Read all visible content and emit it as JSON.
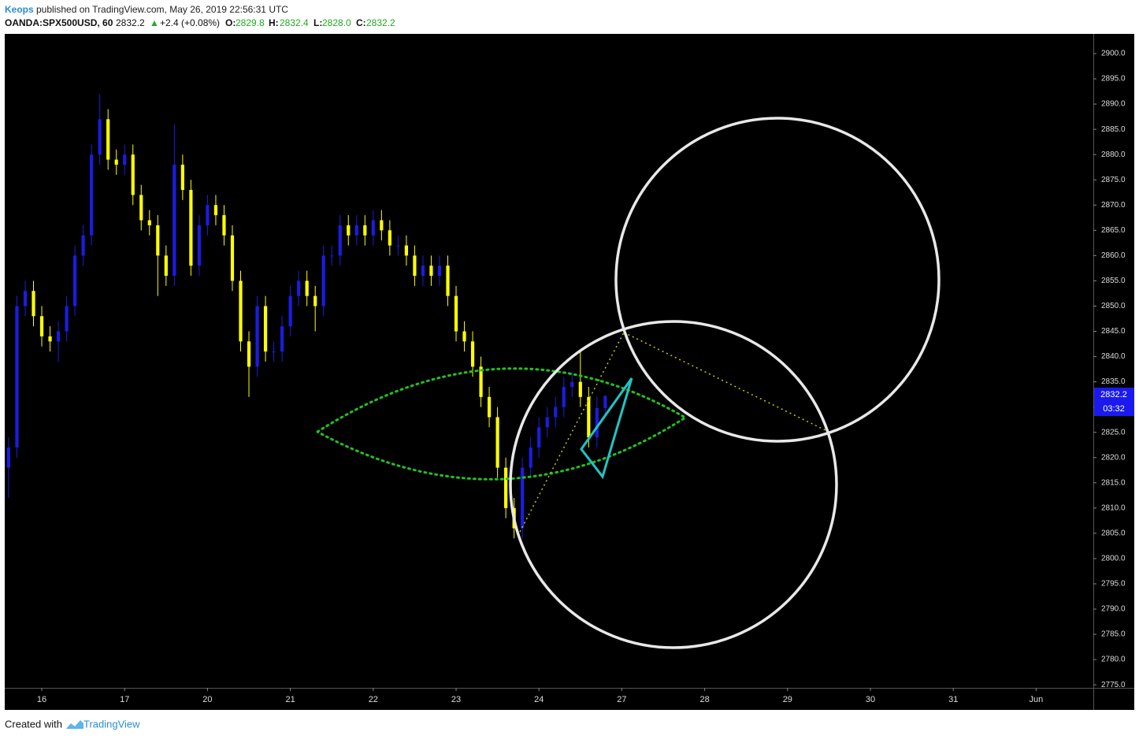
{
  "header": {
    "author": "Keops",
    "published": "published on TradingView.com, May 26, 2019 22:56:31 UTC",
    "symbol": "OANDA:SPX500USD, 60",
    "last": "2832.2",
    "arrow": "▲",
    "change": "+2.4 (+0.08%)",
    "o_label": "O:",
    "o": "2829.8",
    "h_label": "H:",
    "h": "2832.4",
    "l_label": "L:",
    "l": "2828.0",
    "c_label": "C:",
    "c": "2832.2"
  },
  "footer": {
    "created": "Created with",
    "brand": "TradingView"
  },
  "chart_data": {
    "type": "candlestick",
    "up_color": "#1c1ce0",
    "down_color": "#ffff00",
    "last_price_label": "2832.2",
    "countdown": "03:32",
    "x": [
      -0.4,
      -0.3,
      -0.2,
      -0.1,
      0,
      0.1,
      0.2,
      0.3,
      0.4,
      0.5,
      0.6,
      0.7,
      0.8,
      0.9,
      1,
      1.1,
      1.2,
      1.3,
      1.4,
      1.5,
      1.6,
      1.7,
      1.8,
      1.9,
      2,
      2.1,
      2.2,
      2.3,
      2.4,
      2.5,
      2.6,
      2.7,
      2.8,
      2.9,
      3,
      3.1,
      3.2,
      3.3,
      3.4,
      3.5,
      3.6,
      3.7,
      3.8,
      3.9,
      4,
      4.1,
      4.2,
      4.3,
      4.4,
      4.5,
      4.6,
      4.7,
      4.8,
      4.9,
      5,
      5.1,
      5.2,
      5.3,
      5.4,
      5.5,
      5.6,
      5.7,
      5.8,
      5.9,
      6,
      6.1,
      6.2,
      6.3,
      6.4,
      6.5,
      6.6,
      6.7,
      6.8
    ],
    "open": [
      2818,
      2822,
      2850,
      2853,
      2848,
      2844,
      2843,
      2845,
      2850,
      2860,
      2864,
      2880,
      2887,
      2879,
      2878,
      2880,
      2872,
      2867,
      2866,
      2860,
      2856,
      2878,
      2873,
      2858,
      2866,
      2870,
      2868,
      2864,
      2855,
      2843,
      2838,
      2850,
      2841,
      2841,
      2846,
      2852,
      2855,
      2852,
      2850,
      2860,
      2860,
      2866,
      2864,
      2866,
      2864,
      2867,
      2865,
      2862,
      2862,
      2860,
      2856,
      2858,
      2856,
      2858,
      2852,
      2845,
      2843,
      2838,
      2832,
      2828,
      2818,
      2810,
      2806,
      2818,
      2822,
      2826,
      2828,
      2830,
      2834,
      2835,
      2832,
      2824,
      2829.8
    ],
    "high": [
      2824,
      2852,
      2855,
      2855,
      2850,
      2846,
      2847,
      2852,
      2862,
      2866,
      2882,
      2892,
      2889,
      2881,
      2882,
      2882,
      2874,
      2869,
      2868,
      2862,
      2886,
      2880,
      2875,
      2868,
      2872,
      2872,
      2870,
      2866,
      2857,
      2845,
      2852,
      2852,
      2843,
      2848,
      2854,
      2857,
      2857,
      2854,
      2862,
      2862,
      2868,
      2868,
      2868,
      2868,
      2869,
      2869,
      2867,
      2864,
      2864,
      2862,
      2860,
      2860,
      2860,
      2860,
      2854,
      2847,
      2845,
      2840,
      2834,
      2830,
      2820,
      2812,
      2820,
      2824,
      2828,
      2830,
      2832,
      2836,
      2837,
      2841,
      2834,
      2832,
      2832.4
    ],
    "low": [
      2812,
      2820,
      2848,
      2846,
      2842,
      2841,
      2839,
      2843,
      2848,
      2858,
      2862,
      2878,
      2877,
      2876,
      2876,
      2870,
      2865,
      2864,
      2852,
      2854,
      2854,
      2871,
      2856,
      2856,
      2864,
      2866,
      2862,
      2853,
      2841,
      2832,
      2836,
      2839,
      2839,
      2839,
      2844,
      2850,
      2850,
      2845,
      2848,
      2858,
      2858,
      2862,
      2862,
      2862,
      2862,
      2863,
      2860,
      2860,
      2858,
      2854,
      2854,
      2854,
      2854,
      2850,
      2843,
      2841,
      2836,
      2830,
      2826,
      2816,
      2808,
      2804,
      2804,
      2816,
      2820,
      2824,
      2826,
      2828,
      2832,
      2830,
      2822,
      2822,
      2828.0
    ],
    "close": [
      2822,
      2850,
      2853,
      2848,
      2844,
      2843,
      2845,
      2850,
      2860,
      2864,
      2880,
      2887,
      2879,
      2878,
      2880,
      2872,
      2867,
      2866,
      2860,
      2856,
      2878,
      2873,
      2858,
      2866,
      2870,
      2868,
      2864,
      2855,
      2843,
      2838,
      2850,
      2841,
      2841,
      2846,
      2852,
      2855,
      2852,
      2850,
      2860,
      2860,
      2866,
      2864,
      2866,
      2864,
      2867,
      2865,
      2862,
      2862,
      2860,
      2856,
      2858,
      2856,
      2858,
      2852,
      2845,
      2843,
      2838,
      2832,
      2828,
      2818,
      2810,
      2806,
      2818,
      2822,
      2826,
      2828,
      2830,
      2834,
      2835,
      2832,
      2824,
      2829.8,
      2832.2
    ],
    "xlim": [
      -0.447,
      12.69
    ],
    "xticks": [
      {
        "value": 0,
        "label": "16"
      },
      {
        "value": 1,
        "label": "17"
      },
      {
        "value": 2,
        "label": "20"
      },
      {
        "value": 3,
        "label": "21"
      },
      {
        "value": 4,
        "label": "22"
      },
      {
        "value": 5,
        "label": "23"
      },
      {
        "value": 6,
        "label": "24"
      },
      {
        "value": 7,
        "label": "27"
      },
      {
        "value": 8,
        "label": "28"
      },
      {
        "value": 9,
        "label": "29"
      },
      {
        "value": 10,
        "label": "30"
      },
      {
        "value": 11,
        "label": "31"
      },
      {
        "value": 12,
        "label": "Jun"
      }
    ],
    "ylim": [
      2774.4,
      2903.9
    ],
    "yticks": [
      {
        "value": 2775,
        "label": "2775.0"
      },
      {
        "value": 2780,
        "label": "2780.0"
      },
      {
        "value": 2785,
        "label": "2785.0"
      },
      {
        "value": 2790,
        "label": "2790.0"
      },
      {
        "value": 2795,
        "label": "2795.0"
      },
      {
        "value": 2800,
        "label": "2800.0"
      },
      {
        "value": 2805,
        "label": "2805.0"
      },
      {
        "value": 2810,
        "label": "2810.0"
      },
      {
        "value": 2815,
        "label": "2815.0"
      },
      {
        "value": 2820,
        "label": "2820.0"
      },
      {
        "value": 2825,
        "label": "2825.0"
      },
      {
        "value": 2830,
        "label": "2830.0"
      },
      {
        "value": 2835,
        "label": "2835.0"
      },
      {
        "value": 2840,
        "label": "2840.0"
      },
      {
        "value": 2845,
        "label": "2845.0"
      },
      {
        "value": 2850,
        "label": "2850.0"
      },
      {
        "value": 2855,
        "label": "2855.0"
      },
      {
        "value": 2860,
        "label": "2860.0"
      },
      {
        "value": 2865,
        "label": "2865.0"
      },
      {
        "value": 2870,
        "label": "2870.0"
      },
      {
        "value": 2875,
        "label": "2875.0"
      },
      {
        "value": 2880,
        "label": "2880.0"
      },
      {
        "value": 2885,
        "label": "2885.0"
      },
      {
        "value": 2890,
        "label": "2890.0"
      },
      {
        "value": 2895,
        "label": "2895.0"
      },
      {
        "value": 2900,
        "label": "2900.0"
      }
    ]
  }
}
